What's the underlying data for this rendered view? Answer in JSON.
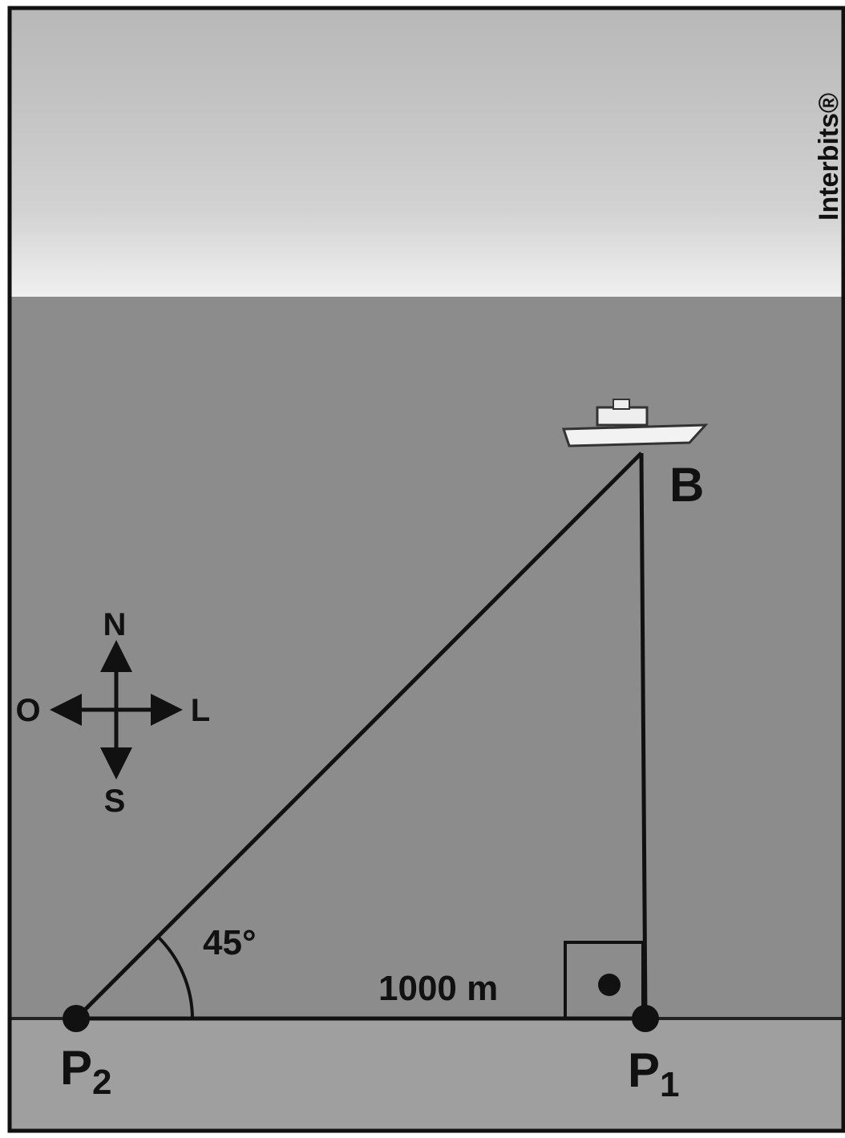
{
  "watermark": "Interbits®",
  "compass": {
    "north": "N",
    "west": "O",
    "east": "L",
    "south": "S"
  },
  "nodes": [
    {
      "label": "B"
    },
    {
      "label": "P",
      "subscript": "1"
    },
    {
      "label": "P",
      "subscript": "2"
    }
  ],
  "angle": "45°",
  "distance": "1000 m"
}
